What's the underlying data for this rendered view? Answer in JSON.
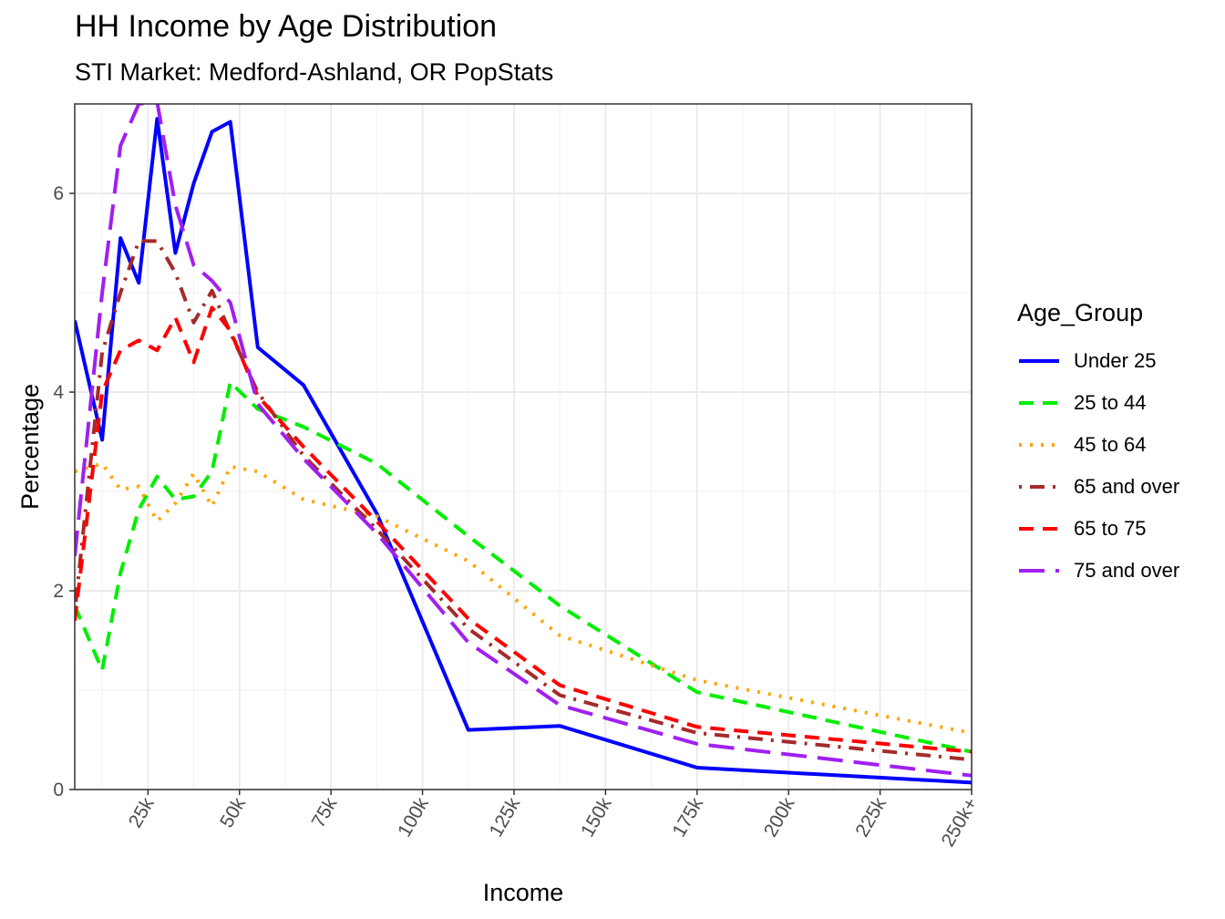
{
  "chart_data": {
    "type": "line",
    "title": "HH Income by Age Distribution",
    "subtitle": "STI Market: Medford-Ashland, OR PopStats",
    "xlabel": "Income",
    "ylabel": "Percentage",
    "xlim": [
      5,
      250
    ],
    "ylim": [
      0,
      6.9
    ],
    "x_ticks": [
      25,
      50,
      75,
      100,
      125,
      150,
      175,
      200,
      225,
      250
    ],
    "x_tick_labels": [
      "25k",
      "50k",
      "75k",
      "100k",
      "125k",
      "150k",
      "175k",
      "200k",
      "225k",
      "250k+"
    ],
    "y_ticks": [
      0,
      2,
      4,
      6
    ],
    "y_tick_labels": [
      "0",
      "2",
      "4",
      "6"
    ],
    "grid": true,
    "legend_title": "Age_Group",
    "legend_position": "right",
    "x": [
      5,
      12.5,
      17.5,
      22.5,
      27.5,
      32.5,
      37.5,
      42.5,
      47.5,
      55,
      67.5,
      87.5,
      112.5,
      137.5,
      175,
      250
    ],
    "series": [
      {
        "name": "Under 25",
        "color": "#0000ff",
        "dash": "solid",
        "values": [
          4.72,
          3.52,
          5.55,
          5.1,
          6.75,
          5.4,
          6.1,
          6.62,
          6.72,
          4.45,
          4.07,
          2.78,
          0.6,
          0.64,
          0.22,
          0.07
        ]
      },
      {
        "name": "25 to 44",
        "color": "#00ee00",
        "dash": "dashed",
        "values": [
          1.85,
          1.2,
          2.18,
          2.82,
          3.15,
          2.92,
          2.95,
          3.2,
          4.1,
          3.83,
          3.65,
          3.28,
          2.55,
          1.85,
          0.98,
          0.38
        ]
      },
      {
        "name": "45 to 64",
        "color": "#ffa500",
        "dash": "dotted",
        "values": [
          3.2,
          3.28,
          3.02,
          3.05,
          2.7,
          2.88,
          3.18,
          2.85,
          3.25,
          3.2,
          2.92,
          2.75,
          2.3,
          1.55,
          1.1,
          0.57
        ]
      },
      {
        "name": "65 and over",
        "color": "#a52a2a",
        "dash": "dotdash",
        "values": [
          1.78,
          4.4,
          5.0,
          5.52,
          5.52,
          5.2,
          4.7,
          5.02,
          4.6,
          4.0,
          3.36,
          2.62,
          1.62,
          0.95,
          0.57,
          0.3
        ]
      },
      {
        "name": "65 to 75",
        "color": "#ff0000",
        "dash": "dashed",
        "values": [
          1.7,
          4.0,
          4.42,
          4.52,
          4.42,
          4.75,
          4.3,
          4.85,
          4.62,
          3.96,
          3.45,
          2.7,
          1.72,
          1.05,
          0.63,
          0.38
        ]
      },
      {
        "name": "75 and over",
        "color": "#a020f0",
        "dash": "longdash",
        "values": [
          2.35,
          5.0,
          6.48,
          6.9,
          6.92,
          5.88,
          5.28,
          5.12,
          4.9,
          3.88,
          3.33,
          2.58,
          1.48,
          0.85,
          0.46,
          0.14
        ]
      }
    ]
  }
}
